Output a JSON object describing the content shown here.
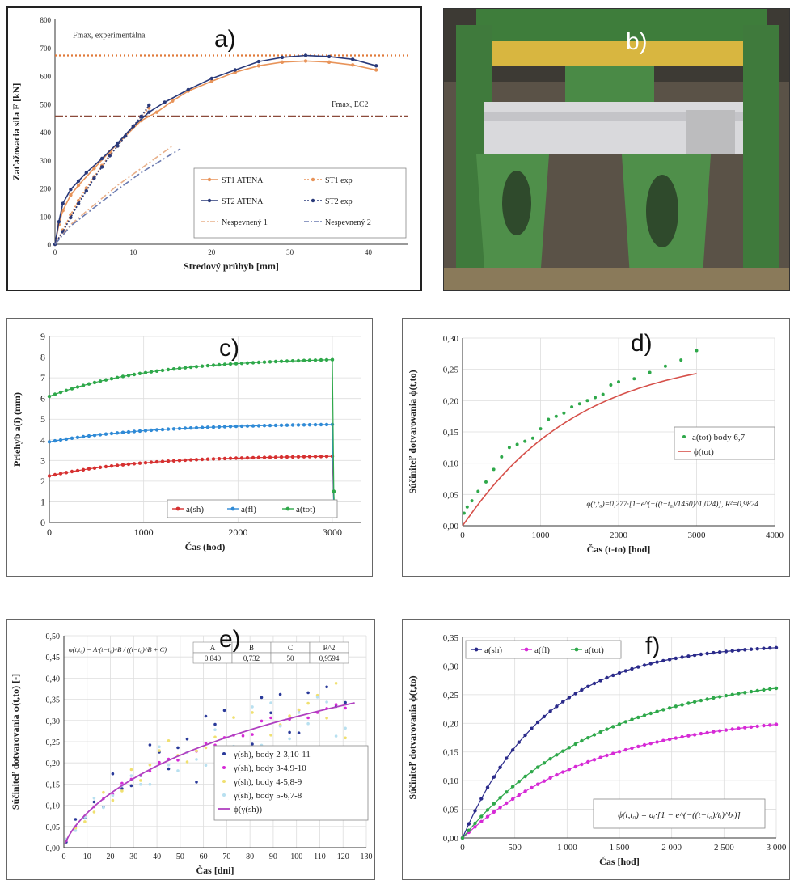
{
  "panels": {
    "a": "a)",
    "b": "b)",
    "c": "c)",
    "d": "d)",
    "e": "e)",
    "f": "f)"
  },
  "photo": {
    "colors": {
      "steel_green": "#3f7a3c",
      "yellow": "#d8b640",
      "slab": "#d9d9dc",
      "background": "#5a5247"
    }
  },
  "chart_data": [
    {
      "id": "a",
      "type": "line",
      "xlabel": "Stredový prúhyb [mm]",
      "ylabel": "Zaťažovacia sila F [kN]",
      "xlim": [
        0,
        45
      ],
      "ylim": [
        0,
        800
      ],
      "xticks": [
        0,
        10,
        20,
        30,
        40
      ],
      "yticks": [
        0,
        100,
        200,
        300,
        400,
        500,
        600,
        700,
        800
      ],
      "grid": false,
      "legend": "bottom-right",
      "hlines": [
        {
          "y": 672,
          "label": "Fmax, experimentálna",
          "color": "#e07a3a",
          "style": "dotted"
        },
        {
          "y": 455,
          "label": "Fmax, EC2",
          "color": "#8b4a3a",
          "style": "dashdot"
        }
      ],
      "series": [
        {
          "name": "ST1 ATENA",
          "color": "#e8945a",
          "style": "solid-marker",
          "points": [
            [
              0,
              0
            ],
            [
              0.5,
              70
            ],
            [
              1,
              120
            ],
            [
              2,
              175
            ],
            [
              3,
              210
            ],
            [
              5,
              270
            ],
            [
              7,
              330
            ],
            [
              9,
              385
            ],
            [
              11,
              440
            ],
            [
              13,
              470
            ],
            [
              15,
              510
            ],
            [
              17,
              545
            ],
            [
              20,
              580
            ],
            [
              23,
              612
            ],
            [
              26,
              635
            ],
            [
              29,
              648
            ],
            [
              32,
              652
            ],
            [
              35,
              648
            ],
            [
              38,
              638
            ],
            [
              41,
              620
            ]
          ]
        },
        {
          "name": "ST1 exp",
          "color": "#e8945a",
          "style": "dotted-marker",
          "points": [
            [
              0,
              0
            ],
            [
              1,
              50
            ],
            [
              2,
              105
            ],
            [
              3,
              155
            ],
            [
              4,
              200
            ],
            [
              5,
              240
            ],
            [
              6,
              280
            ],
            [
              7,
              318
            ],
            [
              8,
              350
            ],
            [
              9,
              385
            ],
            [
              10,
              420
            ],
            [
              11,
              455
            ],
            [
              12,
              485
            ]
          ]
        },
        {
          "name": "ST2 ATENA",
          "color": "#2a3a7a",
          "style": "solid-marker",
          "points": [
            [
              0,
              0
            ],
            [
              0.5,
              80
            ],
            [
              1,
              145
            ],
            [
              2,
              195
            ],
            [
              3,
              225
            ],
            [
              4,
              255
            ],
            [
              6,
              305
            ],
            [
              8,
              360
            ],
            [
              10,
              420
            ],
            [
              12,
              470
            ],
            [
              14,
              505
            ],
            [
              17,
              550
            ],
            [
              20,
              590
            ],
            [
              23,
              620
            ],
            [
              26,
              650
            ],
            [
              29,
              665
            ],
            [
              32,
              672
            ],
            [
              35,
              668
            ],
            [
              38,
              658
            ],
            [
              41,
              635
            ]
          ]
        },
        {
          "name": "ST2 exp",
          "color": "#2a3a7a",
          "style": "dotted-marker",
          "points": [
            [
              0,
              0
            ],
            [
              1,
              45
            ],
            [
              2,
              95
            ],
            [
              3,
              145
            ],
            [
              4,
              190
            ],
            [
              5,
              235
            ],
            [
              6,
              275
            ],
            [
              7,
              315
            ],
            [
              8,
              350
            ],
            [
              9,
              385
            ],
            [
              10,
              420
            ],
            [
              11,
              455
            ],
            [
              12,
              495
            ]
          ]
        },
        {
          "name": "Nespevnený 1",
          "color": "#e8b08a",
          "style": "dashdot",
          "points": [
            [
              0,
              0
            ],
            [
              2,
              70
            ],
            [
              5,
              140
            ],
            [
              8,
              210
            ],
            [
              11,
              270
            ],
            [
              15,
              350
            ]
          ]
        },
        {
          "name": "Nespevnený 2",
          "color": "#6a7ab0",
          "style": "dashdot",
          "points": [
            [
              0,
              0
            ],
            [
              2,
              65
            ],
            [
              5,
              130
            ],
            [
              8,
              195
            ],
            [
              11,
              255
            ],
            [
              16,
              340
            ]
          ]
        }
      ]
    },
    {
      "id": "c",
      "type": "scatter",
      "xlabel": "Čas (hod)",
      "ylabel": "Priehyb a(i) (mm)",
      "xlim": [
        0,
        3300
      ],
      "ylim": [
        0,
        9
      ],
      "xticks": [
        0,
        1000,
        2000,
        3000
      ],
      "yticks": [
        0,
        1,
        2,
        3,
        4,
        5,
        6,
        7,
        8,
        9
      ],
      "grid": true,
      "legend": "bottom-right",
      "series": [
        {
          "name": "a(sh)",
          "color": "#d63030",
          "model": {
            "type": "growth",
            "start": 2.25,
            "add": 1.0,
            "tau": 1000
          },
          "end": [
            [
              3015,
              0.9
            ],
            [
              3020,
              0.7
            ]
          ]
        },
        {
          "name": "a(fl)",
          "color": "#2f8ad6",
          "model": {
            "type": "growth",
            "start": 3.9,
            "add": 0.9,
            "tau": 1100
          },
          "end": [
            [
              3015,
              0.6
            ],
            [
              3020,
              0.5
            ]
          ]
        },
        {
          "name": "a(tot)",
          "color": "#2ea84a",
          "model": {
            "type": "growth",
            "start": 6.1,
            "add": 1.9,
            "tau": 1100
          },
          "end": [
            [
              3015,
              1.5
            ],
            [
              3020,
              1.0
            ]
          ]
        }
      ]
    },
    {
      "id": "d",
      "type": "scatter",
      "xlabel": "Čas (t-to) [hod]",
      "ylabel": "Súčiniteľ dotvarovania ϕ(t,to)",
      "xlim": [
        0,
        4000
      ],
      "ylim": [
        0,
        0.3
      ],
      "xticks": [
        0,
        1000,
        2000,
        3000,
        4000
      ],
      "yticks": [
        "0,00",
        "0,05",
        "0,10",
        "0,15",
        "0,20",
        "0,25",
        "0,30"
      ],
      "grid": true,
      "legend": "middle-right",
      "formula": "ϕ(t,t₀)=0,277·[1−e^(−((t−t₀)/1450)^1,024)], R²=0,9824",
      "series": [
        {
          "name": "a(tot) body 6,7",
          "color": "#2ea84a",
          "style": "markers",
          "points": [
            [
              20,
              0.02
            ],
            [
              60,
              0.03
            ],
            [
              120,
              0.04
            ],
            [
              200,
              0.055
            ],
            [
              300,
              0.07
            ],
            [
              400,
              0.09
            ],
            [
              500,
              0.11
            ],
            [
              600,
              0.125
            ],
            [
              700,
              0.13
            ],
            [
              800,
              0.135
            ],
            [
              900,
              0.14
            ],
            [
              1000,
              0.155
            ],
            [
              1100,
              0.17
            ],
            [
              1200,
              0.175
            ],
            [
              1300,
              0.18
            ],
            [
              1400,
              0.19
            ],
            [
              1500,
              0.195
            ],
            [
              1600,
              0.2
            ],
            [
              1700,
              0.205
            ],
            [
              1800,
              0.21
            ],
            [
              1900,
              0.225
            ],
            [
              2000,
              0.23
            ],
            [
              2200,
              0.235
            ],
            [
              2400,
              0.245
            ],
            [
              2600,
              0.255
            ],
            [
              2800,
              0.265
            ],
            [
              3000,
              0.28
            ]
          ]
        },
        {
          "name": "ϕ(tot)",
          "color": "#d6504a",
          "style": "line",
          "model": {
            "type": "creep",
            "a": 0.277,
            "t0": 1450,
            "b": 1.024
          }
        }
      ]
    },
    {
      "id": "e",
      "type": "scatter",
      "xlabel": "Čas [dni]",
      "ylabel": "Súčiniteľ dotvarovania ϕ(t,to) [-]",
      "xlim": [
        0,
        130
      ],
      "ylim": [
        0,
        0.5
      ],
      "xticks": [
        0,
        10,
        20,
        30,
        40,
        50,
        60,
        70,
        80,
        90,
        100,
        110,
        120,
        130
      ],
      "yticks": [
        "0,00",
        "0,05",
        "0,10",
        "0,15",
        "0,20",
        "0,25",
        "0,30",
        "0,35",
        "0,40",
        "0,45",
        "0,50"
      ],
      "grid": true,
      "legend": "bottom-right",
      "formula_label": "φ(t,t₀) = A·(t−t₀)^B / ((t−t₀)^B + C)",
      "params_table": {
        "headers": [
          "A",
          "B",
          "C",
          "R^2"
        ],
        "values": [
          "0,840",
          "0,732",
          "50",
          "0,9594"
        ]
      },
      "series": [
        {
          "name": "γ(sh), body  2-3,10-11",
          "color": "#2a3a9a",
          "scatter": 0.35,
          "seed": 3
        },
        {
          "name": "γ(sh), body  3-4,9-10",
          "color": "#d62ad6",
          "scatter": 0.05,
          "seed": 7
        },
        {
          "name": "γ(sh), body  4-5,8-9",
          "color": "#f0e070",
          "scatter": 0.25,
          "seed": 11
        },
        {
          "name": "γ(sh), body  5-6,7-8",
          "color": "#b8e0f0",
          "scatter": 0.25,
          "seed": 17
        },
        {
          "name": "ϕ(γ(sh))",
          "color": "#b040c0",
          "style": "line",
          "model": {
            "type": "ratio",
            "A": 0.84,
            "B": 0.732,
            "C": 50
          }
        }
      ]
    },
    {
      "id": "f",
      "type": "line",
      "xlabel": "Čas [hod]",
      "ylabel": "Súčiniteľ dotvarovania ϕ(t,to)",
      "xlim": [
        0,
        3000
      ],
      "ylim": [
        0,
        0.35
      ],
      "xticks": [
        "0",
        "500",
        "1 000",
        "1 500",
        "2 000",
        "2 500",
        "3 000"
      ],
      "yticks": [
        "0,00",
        "0,05",
        "0,10",
        "0,15",
        "0,20",
        "0,25",
        "0,30",
        "0,35"
      ],
      "grid": true,
      "legend": "top-left",
      "formula": "ϕ(t,t₀) = aᵢ·[1 − e^(−((t−t₀)/tᵢ)^bᵢ)]",
      "series": [
        {
          "name": "a(sh)",
          "color": "#2a2a8a",
          "model": {
            "type": "creep",
            "a": 0.34,
            "t0": 800,
            "b": 1.0
          }
        },
        {
          "name": "a(fl)",
          "color": "#d62ad6",
          "model": {
            "type": "creep",
            "a": 0.22,
            "t0": 1300,
            "b": 1.0
          }
        },
        {
          "name": "a(tot)",
          "color": "#2ea84a",
          "model": {
            "type": "creep",
            "a": 0.29,
            "t0": 1300,
            "b": 1.0
          }
        }
      ]
    }
  ]
}
